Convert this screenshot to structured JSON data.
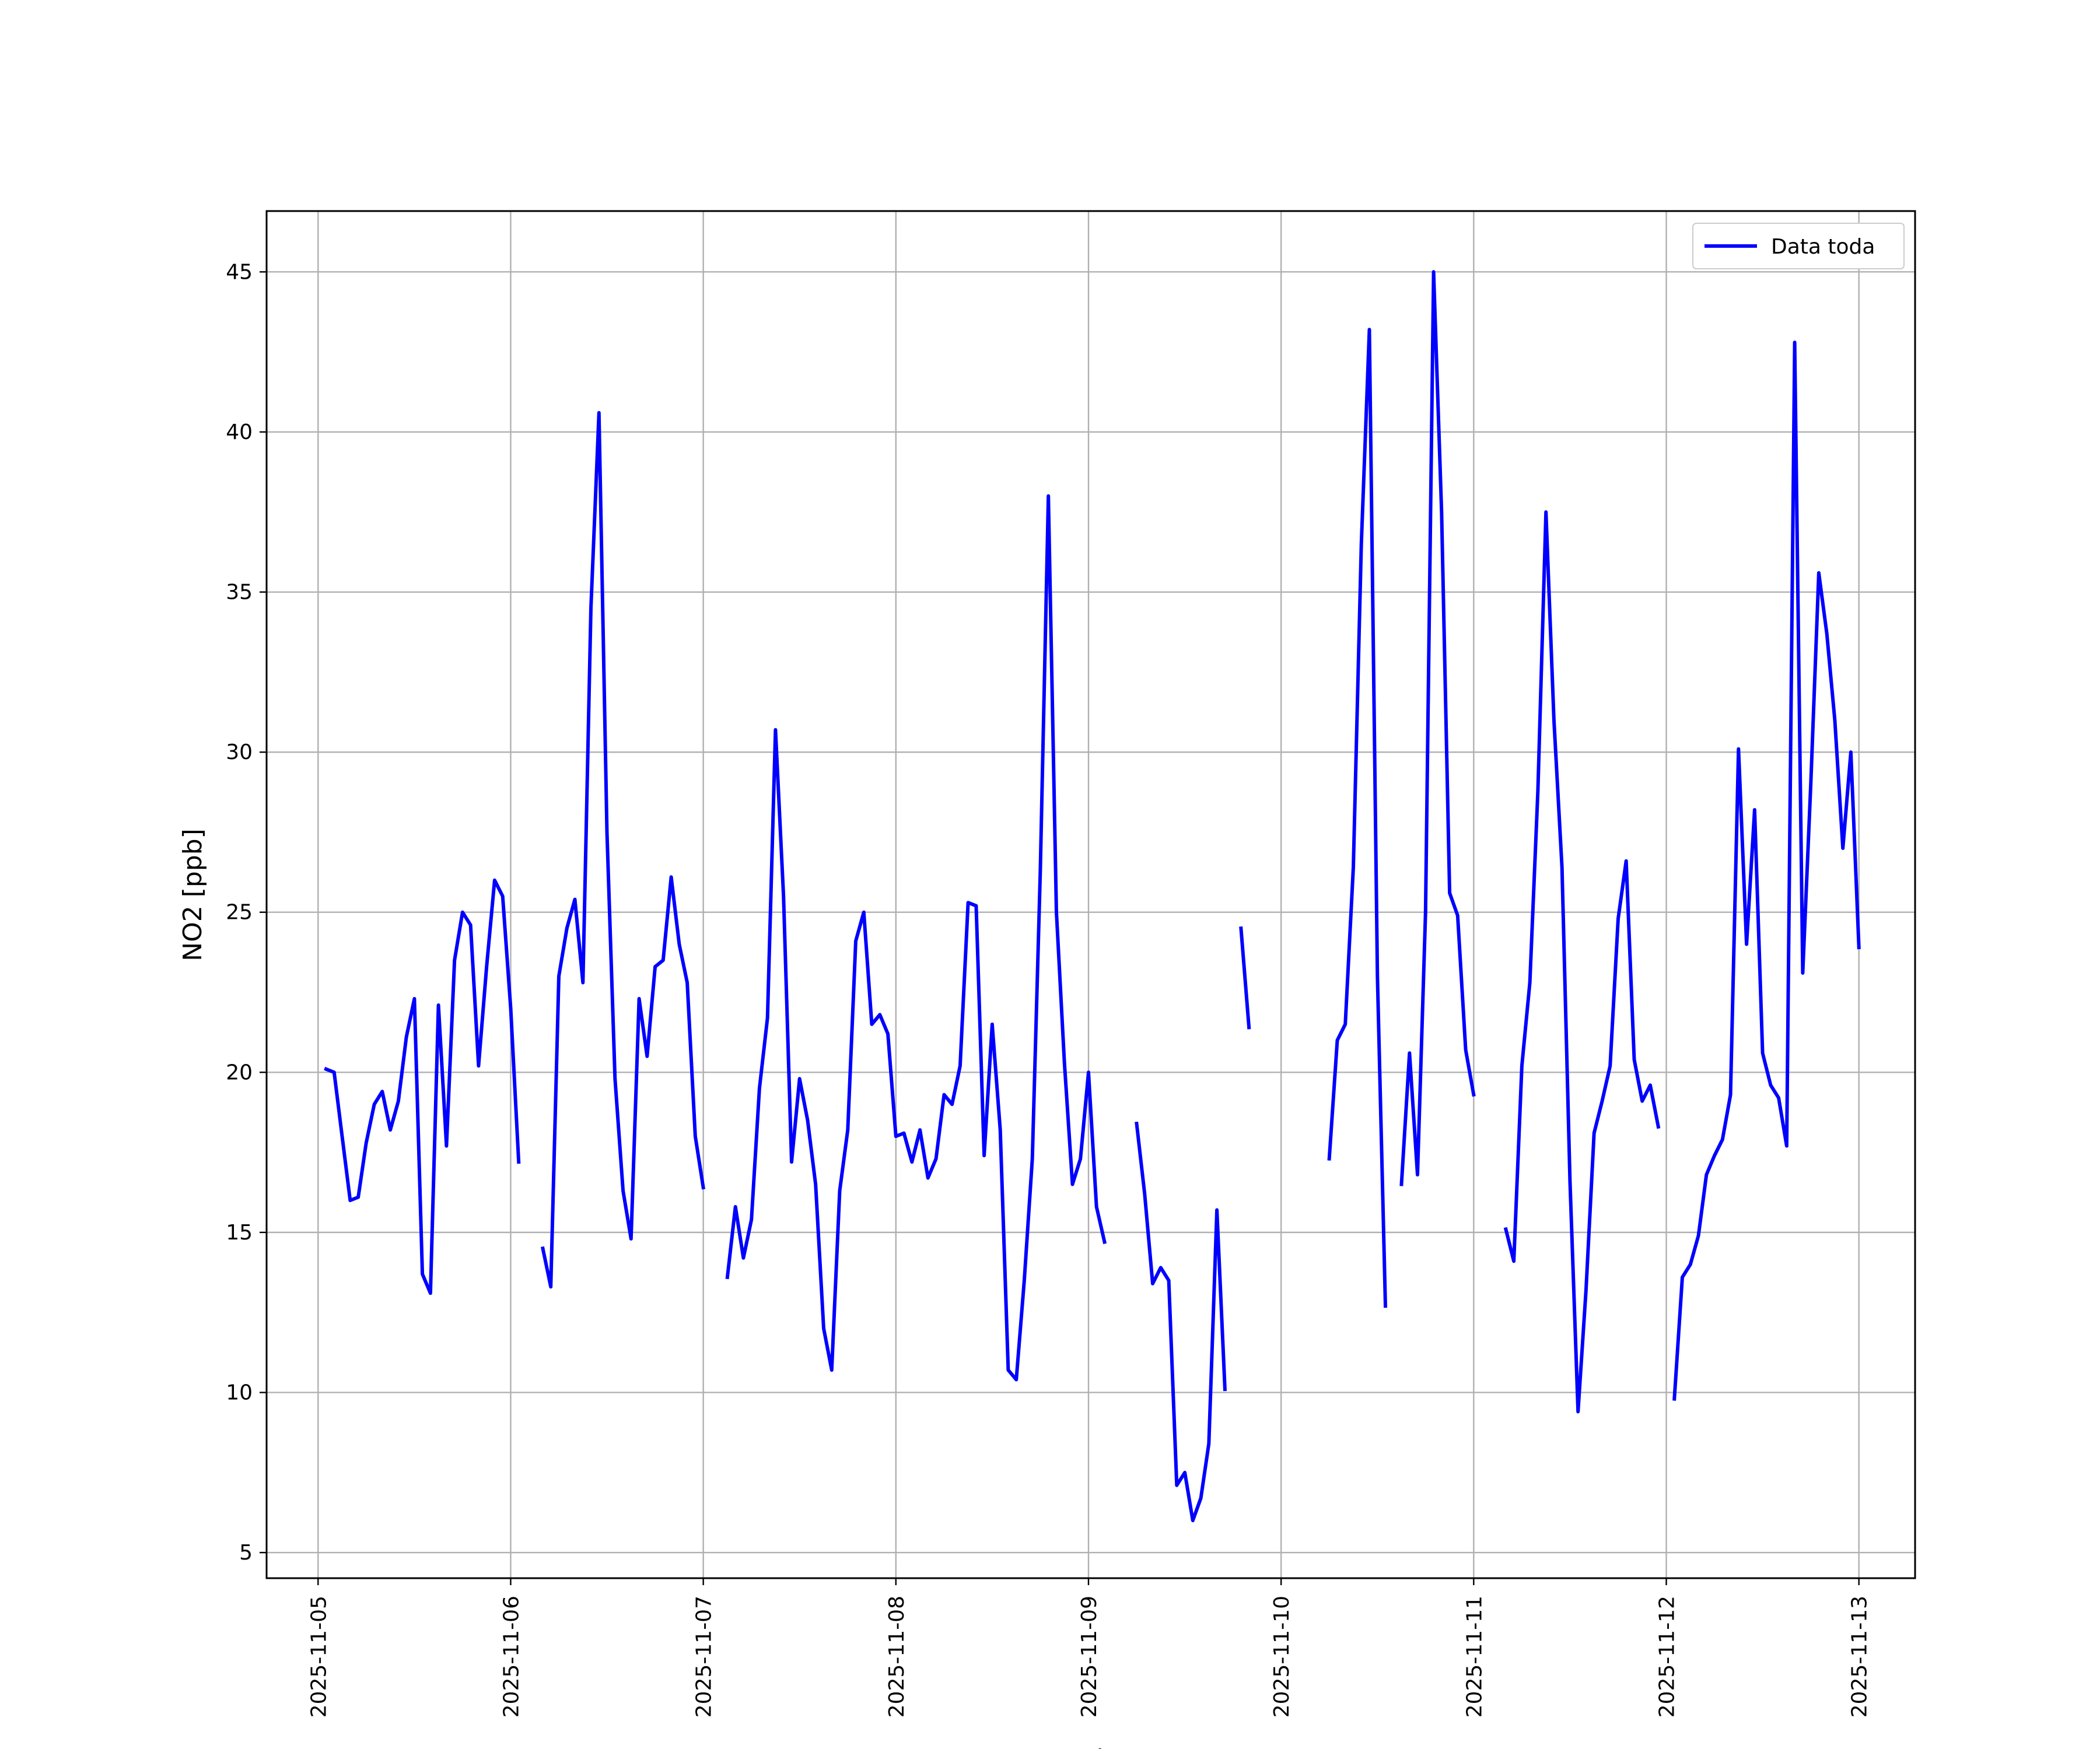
{
  "chart_data": {
    "type": "line",
    "title": "",
    "xlabel": "Fecha",
    "ylabel": "NO2 [ppb]",
    "ylim": [
      4.2,
      46.9
    ],
    "xlim": [
      "2025-11-04 17:35",
      "2025-11-13 07:00"
    ],
    "grid": true,
    "legend_position": "top-right",
    "x_ticks": [
      "2025-11-05",
      "2025-11-06",
      "2025-11-07",
      "2025-11-08",
      "2025-11-09",
      "2025-11-10",
      "2025-11-11",
      "2025-11-12",
      "2025-11-13"
    ],
    "y_ticks": [
      5,
      10,
      15,
      20,
      25,
      30,
      35,
      40,
      45
    ],
    "series": [
      {
        "name": "Data toda",
        "color": "#0000ff",
        "points": [
          [
            "2025-11-05 01:00",
            20.1
          ],
          [
            "2025-11-05 02:00",
            20.0
          ],
          [
            "2025-11-05 03:00",
            18.0
          ],
          [
            "2025-11-05 04:00",
            16.0
          ],
          [
            "2025-11-05 05:00",
            16.1
          ],
          [
            "2025-11-05 06:00",
            17.8
          ],
          [
            "2025-11-05 07:00",
            19.0
          ],
          [
            "2025-11-05 08:00",
            19.4
          ],
          [
            "2025-11-05 09:00",
            18.2
          ],
          [
            "2025-11-05 10:00",
            19.1
          ],
          [
            "2025-11-05 11:00",
            21.1
          ],
          [
            "2025-11-05 12:00",
            22.3
          ],
          [
            "2025-11-05 13:00",
            13.7
          ],
          [
            "2025-11-05 14:00",
            13.1
          ],
          [
            "2025-11-05 15:00",
            22.1
          ],
          [
            "2025-11-05 16:00",
            17.7
          ],
          [
            "2025-11-05 17:00",
            23.5
          ],
          [
            "2025-11-05 18:00",
            25.0
          ],
          [
            "2025-11-05 19:00",
            24.6
          ],
          [
            "2025-11-05 20:00",
            20.2
          ],
          [
            "2025-11-05 21:00",
            23.3
          ],
          [
            "2025-11-05 22:00",
            26.0
          ],
          [
            "2025-11-05 23:00",
            25.5
          ],
          [
            "2025-11-06 00:00",
            22.0
          ],
          [
            "2025-11-06 01:00",
            17.2
          ],
          null,
          [
            "2025-11-06 04:00",
            14.5
          ],
          [
            "2025-11-06 05:00",
            13.3
          ],
          [
            "2025-11-06 06:00",
            23.0
          ],
          [
            "2025-11-06 07:00",
            24.5
          ],
          [
            "2025-11-06 08:00",
            25.4
          ],
          [
            "2025-11-06 09:00",
            22.8
          ],
          [
            "2025-11-06 10:00",
            34.5
          ],
          [
            "2025-11-06 11:00",
            40.6
          ],
          [
            "2025-11-06 12:00",
            27.5
          ],
          [
            "2025-11-06 13:00",
            19.8
          ],
          [
            "2025-11-06 14:00",
            16.3
          ],
          [
            "2025-11-06 15:00",
            14.8
          ],
          [
            "2025-11-06 16:00",
            22.3
          ],
          [
            "2025-11-06 17:00",
            20.5
          ],
          [
            "2025-11-06 18:00",
            23.3
          ],
          [
            "2025-11-06 19:00",
            23.5
          ],
          [
            "2025-11-06 20:00",
            26.1
          ],
          [
            "2025-11-06 21:00",
            24.0
          ],
          [
            "2025-11-06 22:00",
            22.8
          ],
          [
            "2025-11-06 23:00",
            18.0
          ],
          [
            "2025-11-07 00:00",
            16.4
          ],
          null,
          [
            "2025-11-07 03:00",
            13.6
          ],
          [
            "2025-11-07 04:00",
            15.8
          ],
          [
            "2025-11-07 05:00",
            14.2
          ],
          [
            "2025-11-07 06:00",
            15.4
          ],
          [
            "2025-11-07 07:00",
            19.5
          ],
          [
            "2025-11-07 08:00",
            21.7
          ],
          [
            "2025-11-07 09:00",
            30.7
          ],
          [
            "2025-11-07 10:00",
            25.5
          ],
          [
            "2025-11-07 11:00",
            17.2
          ],
          [
            "2025-11-07 12:00",
            19.8
          ],
          [
            "2025-11-07 13:00",
            18.5
          ],
          [
            "2025-11-07 14:00",
            16.5
          ],
          [
            "2025-11-07 15:00",
            12.0
          ],
          [
            "2025-11-07 16:00",
            10.7
          ],
          [
            "2025-11-07 17:00",
            16.3
          ],
          [
            "2025-11-07 18:00",
            18.2
          ],
          [
            "2025-11-07 19:00",
            24.1
          ],
          [
            "2025-11-07 20:00",
            25.0
          ],
          [
            "2025-11-07 21:00",
            21.5
          ],
          [
            "2025-11-07 22:00",
            21.8
          ],
          [
            "2025-11-07 23:00",
            21.2
          ],
          [
            "2025-11-08 00:00",
            18.0
          ],
          [
            "2025-11-08 01:00",
            18.1
          ],
          [
            "2025-11-08 02:00",
            17.2
          ],
          [
            "2025-11-08 03:00",
            18.2
          ],
          [
            "2025-11-08 04:00",
            16.7
          ],
          [
            "2025-11-08 05:00",
            17.3
          ],
          [
            "2025-11-08 06:00",
            19.3
          ],
          [
            "2025-11-08 07:00",
            19.0
          ],
          [
            "2025-11-08 08:00",
            20.2
          ],
          [
            "2025-11-08 09:00",
            25.3
          ],
          [
            "2025-11-08 10:00",
            25.2
          ],
          [
            "2025-11-08 11:00",
            17.4
          ],
          [
            "2025-11-08 12:00",
            21.5
          ],
          [
            "2025-11-08 13:00",
            18.2
          ],
          [
            "2025-11-08 14:00",
            10.7
          ],
          [
            "2025-11-08 15:00",
            10.4
          ],
          [
            "2025-11-08 16:00",
            13.5
          ],
          [
            "2025-11-08 17:00",
            17.3
          ],
          [
            "2025-11-08 18:00",
            26.3
          ],
          [
            "2025-11-08 19:00",
            38.0
          ],
          [
            "2025-11-08 20:00",
            25.0
          ],
          [
            "2025-11-08 21:00",
            20.3
          ],
          [
            "2025-11-08 22:00",
            16.5
          ],
          [
            "2025-11-08 23:00",
            17.3
          ],
          [
            "2025-11-09 00:00",
            20.0
          ],
          [
            "2025-11-09 01:00",
            15.8
          ],
          [
            "2025-11-09 02:00",
            14.7
          ],
          null,
          [
            "2025-11-09 06:00",
            18.4
          ],
          [
            "2025-11-09 07:00",
            16.2
          ],
          [
            "2025-11-09 08:00",
            13.4
          ],
          [
            "2025-11-09 09:00",
            13.9
          ],
          [
            "2025-11-09 10:00",
            13.5
          ],
          [
            "2025-11-09 11:00",
            7.1
          ],
          [
            "2025-11-09 12:00",
            7.5
          ],
          [
            "2025-11-09 13:00",
            6.0
          ],
          [
            "2025-11-09 14:00",
            6.7
          ],
          [
            "2025-11-09 15:00",
            8.4
          ],
          [
            "2025-11-09 16:00",
            15.7
          ],
          [
            "2025-11-09 17:00",
            10.1
          ],
          null,
          [
            "2025-11-09 19:00",
            24.5
          ],
          [
            "2025-11-09 20:00",
            21.4
          ],
          null,
          [
            "2025-11-10 06:00",
            17.3
          ],
          [
            "2025-11-10 07:00",
            21.0
          ],
          [
            "2025-11-10 08:00",
            21.5
          ],
          [
            "2025-11-10 09:00",
            26.4
          ],
          [
            "2025-11-10 10:00",
            36.5
          ],
          [
            "2025-11-10 11:00",
            43.2
          ],
          [
            "2025-11-10 12:00",
            23.0
          ],
          [
            "2025-11-10 13:00",
            12.7
          ],
          null,
          [
            "2025-11-10 15:00",
            16.5
          ],
          [
            "2025-11-10 16:00",
            20.6
          ],
          [
            "2025-11-10 17:00",
            16.8
          ],
          [
            "2025-11-10 18:00",
            25.0
          ],
          [
            "2025-11-10 19:00",
            45.0
          ],
          [
            "2025-11-10 20:00",
            37.5
          ],
          [
            "2025-11-10 21:00",
            25.6
          ],
          [
            "2025-11-10 22:00",
            24.9
          ],
          [
            "2025-11-10 23:00",
            20.7
          ],
          [
            "2025-11-11 00:00",
            19.3
          ],
          null,
          [
            "2025-11-11 04:00",
            15.1
          ],
          [
            "2025-11-11 05:00",
            14.1
          ],
          [
            "2025-11-11 06:00",
            20.2
          ],
          [
            "2025-11-11 07:00",
            22.8
          ],
          [
            "2025-11-11 08:00",
            28.8
          ],
          [
            "2025-11-11 09:00",
            37.5
          ],
          [
            "2025-11-11 10:00",
            31.0
          ],
          [
            "2025-11-11 11:00",
            26.4
          ],
          [
            "2025-11-11 12:00",
            16.6
          ],
          [
            "2025-11-11 13:00",
            9.4
          ],
          [
            "2025-11-11 14:00",
            13.2
          ],
          [
            "2025-11-11 15:00",
            18.1
          ],
          [
            "2025-11-11 16:00",
            19.1
          ],
          [
            "2025-11-11 17:00",
            20.2
          ],
          [
            "2025-11-11 18:00",
            24.8
          ],
          [
            "2025-11-11 19:00",
            26.6
          ],
          [
            "2025-11-11 20:00",
            20.4
          ],
          [
            "2025-11-11 21:00",
            19.1
          ],
          [
            "2025-11-11 22:00",
            19.6
          ],
          [
            "2025-11-11 23:00",
            18.3
          ],
          null,
          [
            "2025-11-12 01:00",
            9.8
          ],
          [
            "2025-11-12 02:00",
            13.6
          ],
          [
            "2025-11-12 03:00",
            14.0
          ],
          [
            "2025-11-12 04:00",
            14.9
          ],
          [
            "2025-11-12 05:00",
            16.8
          ],
          [
            "2025-11-12 06:00",
            17.4
          ],
          [
            "2025-11-12 07:00",
            17.9
          ],
          [
            "2025-11-12 08:00",
            19.3
          ],
          [
            "2025-11-12 09:00",
            30.1
          ],
          [
            "2025-11-12 10:00",
            24.0
          ],
          [
            "2025-11-12 11:00",
            28.2
          ],
          [
            "2025-11-12 12:00",
            20.6
          ],
          [
            "2025-11-12 13:00",
            19.6
          ],
          [
            "2025-11-12 14:00",
            19.2
          ],
          [
            "2025-11-12 15:00",
            17.7
          ],
          [
            "2025-11-12 16:00",
            42.8
          ],
          [
            "2025-11-12 17:00",
            23.1
          ],
          [
            "2025-11-12 18:00",
            29.0
          ],
          [
            "2025-11-12 19:00",
            35.6
          ],
          [
            "2025-11-12 20:00",
            33.7
          ],
          [
            "2025-11-12 21:00",
            31.0
          ],
          [
            "2025-11-12 22:00",
            27.0
          ],
          [
            "2025-11-12 23:00",
            30.0
          ],
          [
            "2025-11-13 00:00",
            23.9
          ]
        ]
      }
    ]
  }
}
